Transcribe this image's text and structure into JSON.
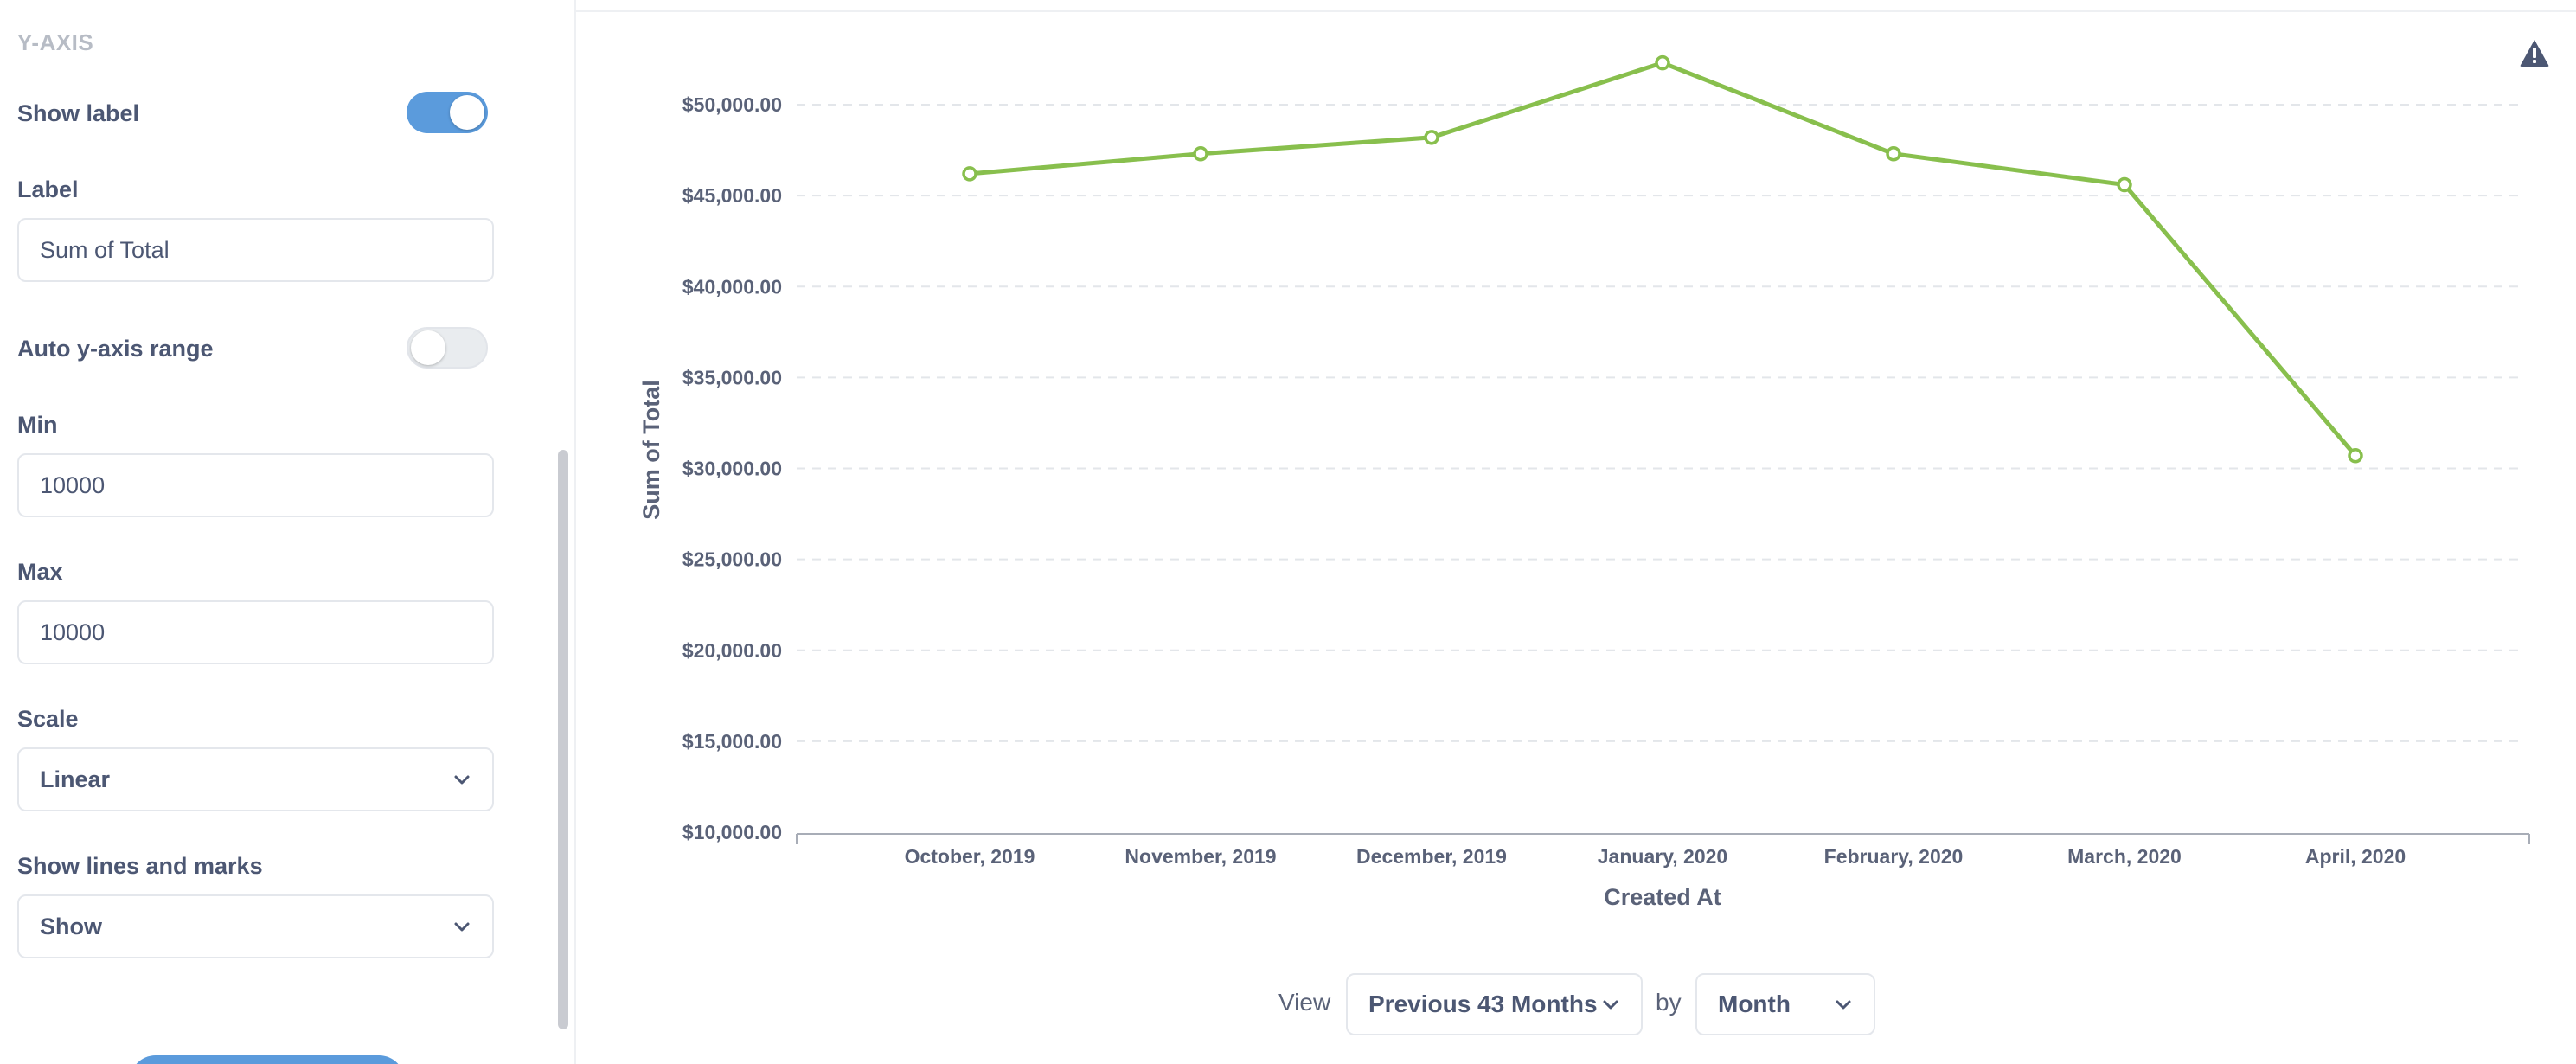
{
  "sidebar": {
    "section_title": "Y-AXIS",
    "show_label": {
      "label": "Show label",
      "checked": true
    },
    "label_field": {
      "label": "Label",
      "value": "Sum of Total"
    },
    "auto_range": {
      "label": "Auto y-axis range",
      "checked": false
    },
    "min_field": {
      "label": "Min",
      "value": "10000"
    },
    "max_field": {
      "label": "Max",
      "value": "10000"
    },
    "scale": {
      "label": "Scale",
      "value": "Linear"
    },
    "lines_marks": {
      "label": "Show lines and marks",
      "value": "Show"
    }
  },
  "footer": {
    "view_label": "View",
    "period_value": "Previous 43 Months",
    "by_label": "by",
    "unit_value": "Month"
  },
  "colors": {
    "line": "#88bf4d",
    "accent": "#5b9bdc",
    "grid": "#e3e6ea",
    "text": "#4c5773"
  },
  "icons": {
    "warning": "warning-icon",
    "chevron": "chevron-down-icon"
  },
  "chart_data": {
    "type": "line",
    "categories": [
      "October, 2019",
      "November, 2019",
      "December, 2019",
      "January, 2020",
      "February, 2020",
      "March, 2020",
      "April, 2020"
    ],
    "series": [
      {
        "values": [
          46200,
          47300,
          48200,
          52300,
          47300,
          45600,
          30700
        ]
      }
    ],
    "xlabel": "Created At",
    "ylabel": "Sum of Total",
    "ylim": [
      10000,
      50000
    ],
    "yticks": [
      "$10,000.00",
      "$15,000.00",
      "$20,000.00",
      "$25,000.00",
      "$30,000.00",
      "$35,000.00",
      "$40,000.00",
      "$45,000.00",
      "$50,000.00"
    ],
    "grid": true,
    "markers": true
  }
}
